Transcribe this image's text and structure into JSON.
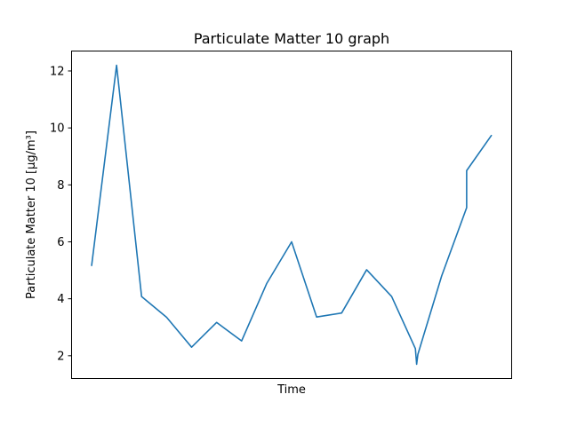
{
  "chart_data": {
    "type": "line",
    "title": "Particulate Matter 10 graph",
    "xlabel": "Time",
    "ylabel": "Particulate Matter 10 [μg/m³]",
    "ylim": [
      1.2,
      12.7
    ],
    "xlim": [
      -0.8,
      16.8
    ],
    "yticks": [
      2,
      4,
      6,
      8,
      10,
      12
    ],
    "x_ticks_shown": false,
    "grid": false,
    "legend": "none",
    "series": [
      {
        "color": "#1f77b4",
        "x": [
          0,
          1,
          2,
          3,
          4,
          5,
          6,
          7,
          8,
          9,
          10,
          11,
          12,
          12.95,
          13.0,
          13.05,
          14,
          15,
          15.0,
          16
        ],
        "y": [
          5.15,
          12.2,
          4.08,
          3.35,
          2.3,
          3.17,
          2.52,
          4.53,
          6.0,
          3.36,
          3.5,
          5.02,
          4.08,
          2.25,
          1.7,
          2.05,
          4.8,
          7.2,
          8.5,
          9.75
        ]
      }
    ]
  }
}
